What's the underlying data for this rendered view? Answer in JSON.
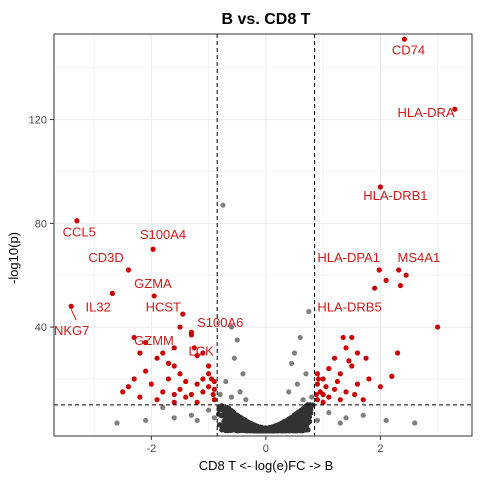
{
  "chart_data": {
    "type": "scatter",
    "title": "B vs. CD8 T",
    "xlabel": "CD8 T <- log(e)FC -> B",
    "ylabel": "-log10(p)",
    "xlim": [
      -3.7,
      3.6
    ],
    "ylim": [
      -2,
      153
    ],
    "x_ticks": [
      -2,
      0,
      2
    ],
    "y_ticks": [
      40,
      80,
      120
    ],
    "grid": true,
    "fc_threshold_lines": [
      -0.85,
      0.85
    ],
    "p_threshold_line": 10,
    "colors": {
      "significant": "#cc0000",
      "nonsignificant": "#7f7f7f",
      "background": "#333333",
      "label": "#cc1a1a"
    },
    "labeled_genes": [
      {
        "gene": "CD74",
        "x": 2.42,
        "y": 151,
        "lx": 2.2,
        "ly": 145
      },
      {
        "gene": "HLA-DRA",
        "x": 3.3,
        "y": 124,
        "lx": 2.3,
        "ly": 121
      },
      {
        "gene": "HLA-DRB1",
        "x": 2.0,
        "y": 94,
        "lx": 1.7,
        "ly": 89
      },
      {
        "gene": "CCL5",
        "x": -3.3,
        "y": 81,
        "lx": -3.55,
        "ly": 75
      },
      {
        "gene": "S100A4",
        "x": -1.97,
        "y": 70,
        "lx": -2.2,
        "ly": 74
      },
      {
        "gene": "CD3D",
        "x": -2.4,
        "y": 62,
        "lx": -3.1,
        "ly": 65
      },
      {
        "gene": "HLA-DPA1",
        "x": 1.98,
        "y": 62,
        "lx": 0.9,
        "ly": 65
      },
      {
        "gene": "MS4A1",
        "x": 2.32,
        "y": 62,
        "lx": 2.3,
        "ly": 65
      },
      {
        "gene": "GZMA",
        "x": -1.95,
        "y": 52,
        "lx": -2.3,
        "ly": 55
      },
      {
        "gene": "IL32",
        "x": -2.68,
        "y": 53,
        "lx": -3.15,
        "ly": 46
      },
      {
        "gene": "HCST",
        "x": -1.45,
        "y": 45,
        "lx": -2.1,
        "ly": 46
      },
      {
        "gene": "HLA-DRB5",
        "x": 1.9,
        "y": 55,
        "lx": 0.9,
        "ly": 46
      },
      {
        "gene": "NKG7",
        "x": -3.4,
        "y": 48,
        "lx": -3.7,
        "ly": 37
      },
      {
        "gene": "S100A6",
        "x": -1.3,
        "y": 38,
        "lx": -1.2,
        "ly": 40
      },
      {
        "gene": "GZMM",
        "x": -2.3,
        "y": 36,
        "lx": -2.3,
        "ly": 33
      },
      {
        "gene": "LCK",
        "x": -1.25,
        "y": 32,
        "lx": -1.35,
        "ly": 29
      }
    ],
    "significant_points": [
      [
        -1.3,
        37
      ],
      [
        -1.5,
        40
      ],
      [
        -1.6,
        32
      ],
      [
        -1.8,
        30
      ],
      [
        -2.1,
        34
      ],
      [
        -2.2,
        30
      ],
      [
        -1.2,
        29
      ],
      [
        -1.1,
        30
      ],
      [
        -1.0,
        25
      ],
      [
        -1.9,
        28
      ],
      [
        -1.6,
        25
      ],
      [
        -1.5,
        22
      ],
      [
        -1.7,
        20
      ],
      [
        -1.4,
        19
      ],
      [
        -1.2,
        18
      ],
      [
        -1.0,
        17
      ],
      [
        -0.9,
        16
      ],
      [
        -0.95,
        20
      ],
      [
        -1.1,
        15
      ],
      [
        -1.3,
        14
      ],
      [
        -1.5,
        16
      ],
      [
        -1.8,
        15
      ],
      [
        -2.0,
        18
      ],
      [
        -2.3,
        20
      ],
      [
        -2.4,
        17
      ],
      [
        -1.4,
        13
      ],
      [
        -1.6,
        11
      ],
      [
        -1.2,
        11
      ],
      [
        -0.9,
        12
      ],
      [
        -0.9,
        19
      ],
      [
        -1.0,
        22
      ],
      [
        -2.1,
        23
      ],
      [
        -1.7,
        26
      ],
      [
        -1.6,
        14
      ],
      [
        -1.9,
        12
      ],
      [
        -2.2,
        13
      ],
      [
        -1.1,
        20
      ],
      [
        -0.92,
        14
      ],
      [
        -2.5,
        15
      ],
      [
        3.0,
        40
      ],
      [
        2.45,
        60
      ],
      [
        2.35,
        56
      ],
      [
        2.1,
        58
      ],
      [
        2.3,
        30
      ],
      [
        1.5,
        36
      ],
      [
        1.4,
        32
      ],
      [
        1.6,
        30
      ],
      [
        1.2,
        28
      ],
      [
        1.1,
        24
      ],
      [
        1.0,
        20
      ],
      [
        0.9,
        18
      ],
      [
        0.95,
        15
      ],
      [
        1.0,
        14
      ],
      [
        1.3,
        22
      ],
      [
        1.5,
        25
      ],
      [
        1.8,
        20
      ],
      [
        1.6,
        18
      ],
      [
        1.2,
        16
      ],
      [
        1.1,
        13
      ],
      [
        0.9,
        12
      ],
      [
        1.4,
        15
      ],
      [
        2.0,
        17
      ],
      [
        1.7,
        12
      ],
      [
        1.3,
        12
      ],
      [
        0.92,
        20
      ],
      [
        1.05,
        17
      ],
      [
        1.25,
        19
      ],
      [
        1.45,
        27
      ],
      [
        1.75,
        28
      ],
      [
        1.55,
        14
      ],
      [
        0.88,
        14
      ],
      [
        1.35,
        36
      ],
      [
        1.0,
        11
      ],
      [
        0.9,
        22
      ],
      [
        2.2,
        21
      ]
    ]
  }
}
